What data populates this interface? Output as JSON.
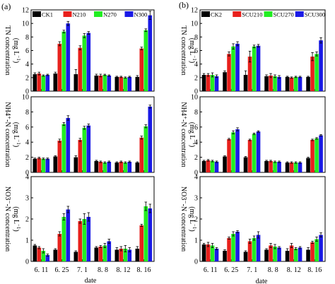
{
  "figure": {
    "panels": [
      {
        "label": "(a)",
        "xlabel": "date",
        "legend": [
          "CK1",
          "N210",
          "N270",
          "N300"
        ],
        "ylabels": [
          "TN concentration",
          "NH4⁺-N concentration",
          "NO3⁻-N concentration"
        ],
        "yunit": "(mg L⁻¹)",
        "yunit_parts": [
          "(mg L",
          "−1",
          ")"
        ]
      },
      {
        "label": "(b)",
        "xlabel": "date",
        "legend": [
          "CK2",
          "SCU210",
          "SCU270",
          "SCU300"
        ],
        "ylabels": [
          "TN concentration",
          "NH4⁺-N concentration",
          "NO3⁻-N concentration"
        ],
        "yunit": "(mg L⁻¹)",
        "yunit_parts": [
          "(mg L",
          "−1",
          ")"
        ]
      }
    ]
  },
  "chart_data": [
    {
      "type": "bar",
      "panel": "(a)",
      "subplot": "TN",
      "ylabel": "TN concentration (mg L⁻¹)",
      "xlabel": "",
      "categories": [
        "6. 11",
        "6. 25",
        "7. 1",
        "8. 8",
        "8. 12",
        "8. 16"
      ],
      "ylim": [
        0,
        12
      ],
      "yticks": [
        0,
        2,
        4,
        6,
        8,
        10,
        12
      ],
      "series": [
        {
          "name": "CK1",
          "color": "#000000",
          "values": [
            2.5,
            2.6,
            2.5,
            2.3,
            2.1,
            2.1
          ],
          "errors": [
            0.2,
            0.2,
            0.7,
            0.2,
            0.1,
            0.2
          ]
        },
        {
          "name": "N210",
          "color": "#e8201c",
          "values": [
            2.6,
            7.0,
            6.4,
            2.3,
            2.1,
            6.3
          ],
          "errors": [
            0.2,
            0.3,
            0.3,
            0.2,
            0.1,
            0.2
          ]
        },
        {
          "name": "N270",
          "color": "#22ee22",
          "values": [
            2.3,
            8.8,
            8.2,
            2.4,
            2.0,
            9.0
          ],
          "errors": [
            0.1,
            0.2,
            0.3,
            0.1,
            0.1,
            0.2
          ]
        },
        {
          "name": "N300",
          "color": "#1a1ae6",
          "values": [
            2.4,
            10.0,
            8.6,
            2.3,
            2.1,
            11.2
          ],
          "errors": [
            0.1,
            0.3,
            0.2,
            0.1,
            0.1,
            0.6
          ]
        }
      ]
    },
    {
      "type": "bar",
      "panel": "(a)",
      "subplot": "NH4+-N",
      "ylabel": "NH4⁺-N concentration (mg L⁻¹)",
      "xlabel": "",
      "categories": [
        "6. 11",
        "6. 25",
        "7. 1",
        "8. 8",
        "8. 12",
        "8. 16"
      ],
      "ylim": [
        0,
        10
      ],
      "yticks": [
        0,
        2,
        4,
        6,
        8,
        10
      ],
      "series": [
        {
          "name": "CK1",
          "color": "#000000",
          "values": [
            1.8,
            2.1,
            2.0,
            1.5,
            1.3,
            1.3
          ],
          "errors": [
            0.1,
            0.1,
            0.2,
            0.1,
            0.1,
            0.1
          ]
        },
        {
          "name": "N210",
          "color": "#e8201c",
          "values": [
            1.9,
            4.2,
            4.3,
            1.4,
            1.4,
            4.6
          ],
          "errors": [
            0.1,
            0.2,
            0.2,
            0.1,
            0.1,
            0.2
          ]
        },
        {
          "name": "N270",
          "color": "#22ee22",
          "values": [
            1.8,
            6.4,
            5.9,
            1.3,
            1.3,
            6.1
          ],
          "errors": [
            0.1,
            0.2,
            0.2,
            0.1,
            0.1,
            0.2
          ]
        },
        {
          "name": "N300",
          "color": "#1a1ae6",
          "values": [
            1.8,
            7.2,
            6.2,
            1.4,
            1.4,
            8.7
          ],
          "errors": [
            0.1,
            0.3,
            0.2,
            0.1,
            0.1,
            0.2
          ]
        }
      ]
    },
    {
      "type": "bar",
      "panel": "(a)",
      "subplot": "NO3--N",
      "ylabel": "NO3⁻-N concentration (mg L⁻¹)",
      "xlabel": "date",
      "categories": [
        "6. 11",
        "6. 25",
        "7. 1",
        "8. 8",
        "8. 12",
        "8. 16"
      ],
      "ylim": [
        0,
        4
      ],
      "yticks": [
        0,
        1,
        2,
        3,
        4
      ],
      "series": [
        {
          "name": "CK1",
          "color": "#000000",
          "values": [
            0.75,
            0.55,
            0.45,
            0.65,
            0.55,
            0.6
          ],
          "errors": [
            0.05,
            0.05,
            0.05,
            0.05,
            0.1,
            0.1
          ]
        },
        {
          "name": "N210",
          "color": "#e8201c",
          "values": [
            0.65,
            1.3,
            1.9,
            0.7,
            0.6,
            1.7
          ],
          "errors": [
            0.05,
            0.1,
            0.1,
            0.05,
            0.1,
            0.05
          ]
        },
        {
          "name": "N270",
          "color": "#22ee22",
          "values": [
            0.5,
            2.1,
            2.0,
            0.75,
            0.6,
            2.6
          ],
          "errors": [
            0.1,
            0.15,
            0.25,
            0.1,
            0.15,
            0.2
          ]
        },
        {
          "name": "N300",
          "color": "#1a1ae6",
          "values": [
            0.3,
            2.45,
            2.1,
            0.95,
            0.55,
            2.5
          ],
          "errors": [
            0.05,
            0.15,
            0.2,
            0.1,
            0.1,
            0.2
          ]
        }
      ]
    },
    {
      "type": "bar",
      "panel": "(b)",
      "subplot": "TN",
      "ylabel": "TN concentration (mg L⁻¹)",
      "xlabel": "",
      "categories": [
        "6. 11",
        "6. 25",
        "7. 1",
        "8. 8",
        "8. 12",
        "8. 16"
      ],
      "ylim": [
        0,
        12
      ],
      "yticks": [
        0,
        2,
        4,
        6,
        8,
        10,
        12
      ],
      "series": [
        {
          "name": "CK2",
          "color": "#000000",
          "values": [
            2.4,
            2.8,
            2.4,
            2.2,
            2.1,
            2.1
          ],
          "errors": [
            0.2,
            0.2,
            0.6,
            0.2,
            0.1,
            0.1
          ]
        },
        {
          "name": "SCU210",
          "color": "#e8201c",
          "values": [
            2.4,
            5.5,
            5.1,
            2.3,
            2.0,
            5.1
          ],
          "errors": [
            0.2,
            0.3,
            0.8,
            0.3,
            0.1,
            0.6
          ]
        },
        {
          "name": "SCU270",
          "color": "#22ee22",
          "values": [
            2.4,
            6.6,
            6.6,
            2.2,
            2.1,
            5.5
          ],
          "errors": [
            0.3,
            0.4,
            0.2,
            0.2,
            0.1,
            0.3
          ]
        },
        {
          "name": "SCU300",
          "color": "#1a1ae6",
          "values": [
            2.2,
            7.0,
            6.7,
            2.1,
            2.1,
            7.5
          ],
          "errors": [
            0.2,
            0.3,
            0.2,
            0.2,
            0.1,
            0.4
          ]
        }
      ]
    },
    {
      "type": "bar",
      "panel": "(b)",
      "subplot": "NH4+-N",
      "ylabel": "NH4⁺-N concentration (mg L⁻¹)",
      "xlabel": "",
      "categories": [
        "6. 11",
        "6. 25",
        "7. 1",
        "8. 8",
        "8. 12",
        "8. 16"
      ],
      "ylim": [
        0,
        10
      ],
      "yticks": [
        0,
        2,
        4,
        6,
        8,
        10
      ],
      "series": [
        {
          "name": "CK2",
          "color": "#000000",
          "values": [
            1.5,
            2.1,
            2.0,
            1.5,
            1.3,
            1.9
          ],
          "errors": [
            0.1,
            0.1,
            0.1,
            0.1,
            0.1,
            0.1
          ]
        },
        {
          "name": "SCU210",
          "color": "#e8201c",
          "values": [
            1.6,
            4.4,
            4.3,
            1.5,
            1.3,
            4.3
          ],
          "errors": [
            0.1,
            0.1,
            0.1,
            0.1,
            0.1,
            0.1
          ]
        },
        {
          "name": "SCU270",
          "color": "#22ee22",
          "values": [
            1.5,
            5.3,
            5.1,
            1.4,
            1.3,
            4.5
          ],
          "errors": [
            0.1,
            0.2,
            0.1,
            0.1,
            0.1,
            0.1
          ]
        },
        {
          "name": "SCU300",
          "color": "#1a1ae6",
          "values": [
            1.4,
            5.7,
            5.4,
            1.4,
            1.3,
            4.9
          ],
          "errors": [
            0.1,
            0.2,
            0.1,
            0.1,
            0.1,
            0.1
          ]
        }
      ]
    },
    {
      "type": "bar",
      "panel": "(b)",
      "subplot": "NO3--N",
      "ylabel": "NO3⁻-N concentration (mg L⁻¹)",
      "xlabel": "date",
      "categories": [
        "6. 11",
        "6. 25",
        "7. 1",
        "8. 8",
        "8. 12",
        "8. 16"
      ],
      "ylim": [
        0,
        4
      ],
      "yticks": [
        0,
        1,
        2,
        3,
        4
      ],
      "series": [
        {
          "name": "CK2",
          "color": "#000000",
          "values": [
            0.8,
            0.5,
            0.45,
            0.55,
            0.5,
            0.55
          ],
          "errors": [
            0.05,
            0.05,
            0.05,
            0.05,
            0.1,
            0.1
          ]
        },
        {
          "name": "SCU210",
          "color": "#e8201c",
          "values": [
            0.8,
            1.1,
            0.95,
            0.75,
            0.75,
            0.9
          ],
          "errors": [
            0.1,
            0.05,
            0.1,
            0.1,
            0.1,
            0.05
          ]
        },
        {
          "name": "SCU270",
          "color": "#22ee22",
          "values": [
            0.75,
            1.3,
            1.1,
            0.7,
            0.6,
            1.05
          ],
          "errors": [
            0.1,
            0.1,
            0.1,
            0.1,
            0.05,
            0.1
          ]
        },
        {
          "name": "SCU300",
          "color": "#1a1ae6",
          "values": [
            0.6,
            1.4,
            1.25,
            0.65,
            0.65,
            1.25
          ],
          "errors": [
            0.05,
            0.05,
            0.15,
            0.05,
            0.05,
            0.1
          ]
        }
      ]
    }
  ]
}
